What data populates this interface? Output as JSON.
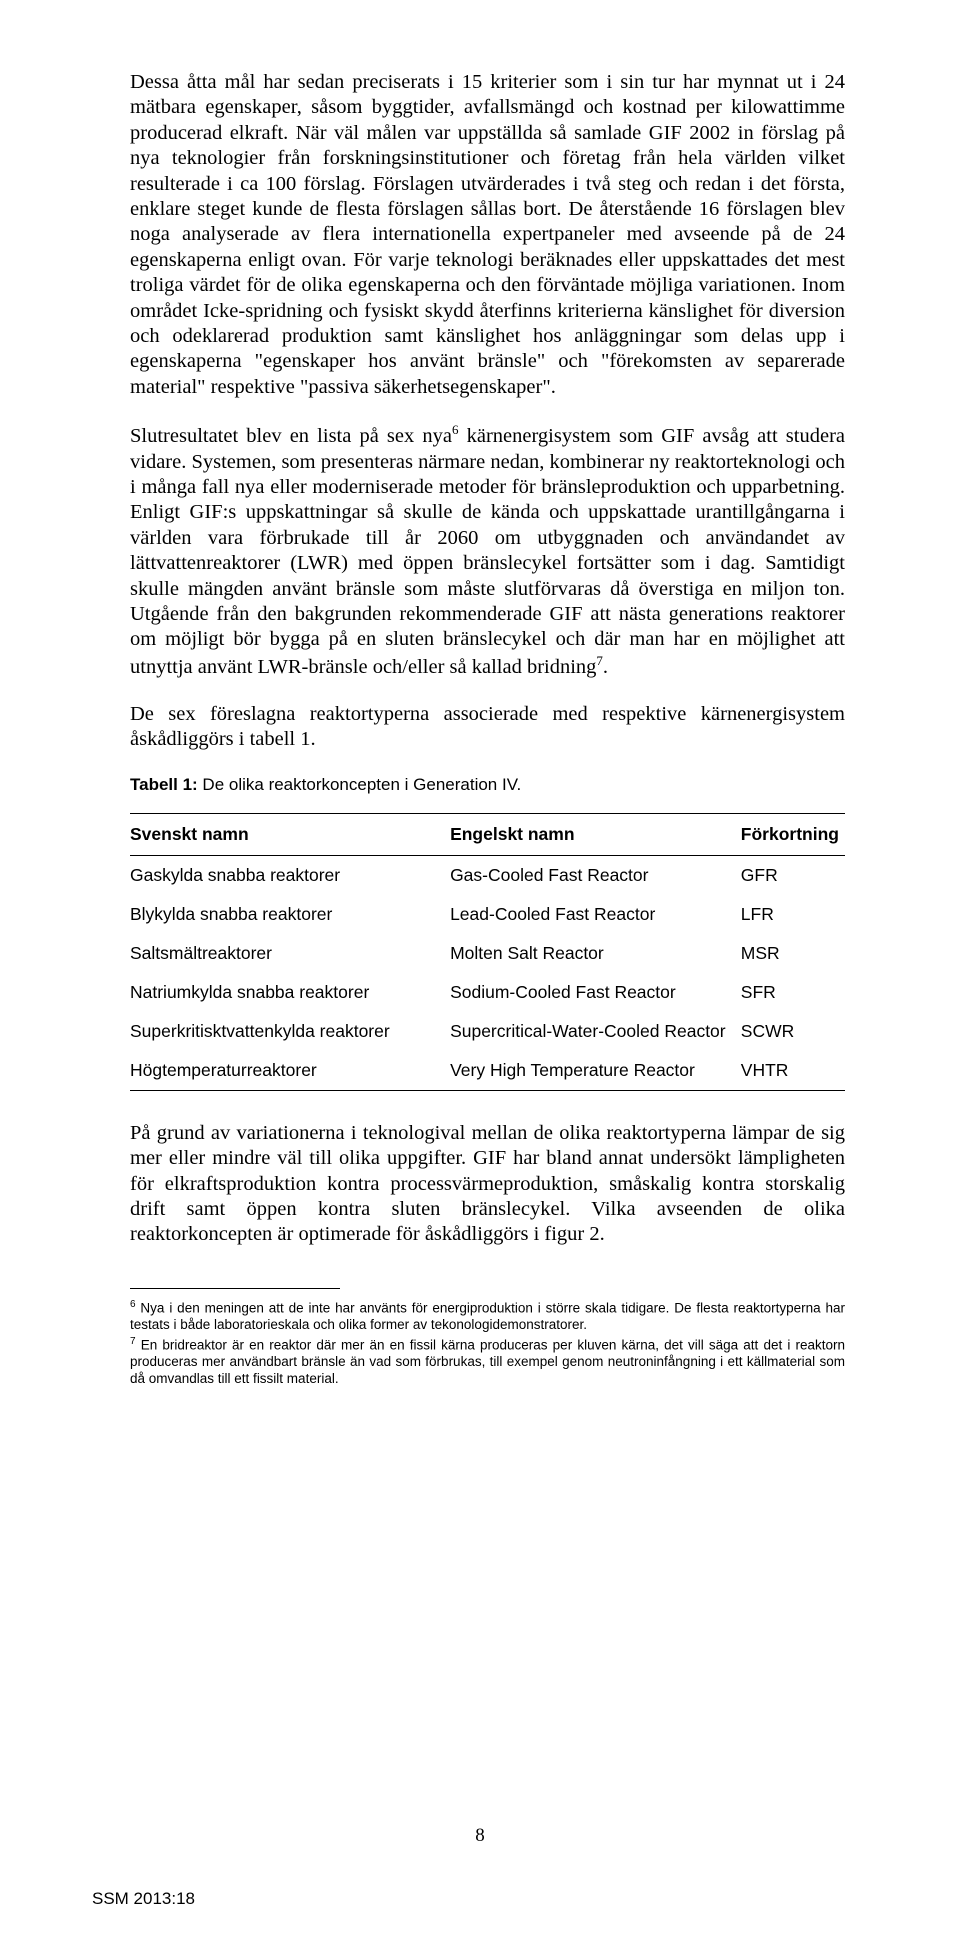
{
  "paragraphs": {
    "p1": "Dessa åtta mål har sedan preciserats i 15 kriterier som i sin tur har mynnat ut i 24 mätbara egenskaper, såsom byggtider, avfallsmängd och kostnad per kilowattimme producerad elkraft. När väl målen var uppställda så samlade GIF 2002 in förslag på nya teknologier från forskningsinstitutioner och företag från hela världen vilket resulterade i ca 100 förslag. Förslagen utvärderades i två steg och redan i det första, enklare steget kunde de flesta förslagen sållas bort. De återstående 16 förslagen blev noga analyserade av flera internationella expertpaneler med avseende på de 24 egenskaperna enligt ovan. För varje teknologi beräknades eller uppskattades det mest troliga värdet för de olika egenskaperna och den förväntade möjliga variationen. Inom området Icke-spridning och fysiskt skydd återfinns kriterierna känslighet för diversion och odeklarerad produktion samt känslighet hos anläggningar som delas upp i egenskaperna \"egenskaper hos använt bränsle\" och \"förekomsten av separerade material\" respektive \"passiva säkerhetsegenskaper\".",
    "p2_a": "Slutresultatet blev en lista på sex nya",
    "p2_sup": "6",
    "p2_b": " kärnenergisystem som GIF avsåg att studera vidare. Systemen, som presenteras närmare nedan, kombinerar ny reaktorteknologi och i många fall nya eller moderniserade metoder för bränsleproduktion och upparbetning. Enligt GIF:s uppskattningar så skulle de kända och uppskattade urantillgångarna i världen vara förbrukade till år 2060 om utbyggnaden och användandet av lättvattenreaktorer (LWR) med öppen bränslecykel fortsätter som i dag. Samtidigt skulle mängden använt bränsle som måste slutförvaras då överstiga en miljon ton. Utgående från den bakgrunden rekommenderade GIF att nästa generations reaktorer om möjligt bör bygga på en sluten bränslecykel och där man har en möjlighet att utnyttja använt LWR-bränsle och/eller så kallad bridning",
    "p2_sup2": "7",
    "p2_c": ".",
    "p3": "De sex föreslagna reaktortyperna associerade med respektive kärnenergisystem åskådliggörs i tabell 1.",
    "p4": "På grund av variationerna i teknologival mellan de olika reaktortyperna lämpar de sig mer eller mindre väl till olika uppgifter. GIF har bland annat undersökt lämpligheten för elkraftsproduktion kontra processvärmeproduktion, småskalig kontra storskalig drift samt öppen kontra sluten bränslecykel. Vilka avseenden de olika reaktorkoncepten är optimerade för åskådliggörs i figur 2."
  },
  "table": {
    "caption_bold": "Tabell 1:",
    "caption_rest": " De olika reaktorkoncepten i Generation IV.",
    "headers": {
      "sv": "Svenskt namn",
      "en": "Engelskt namn",
      "ab": "Förkortning"
    },
    "rows": [
      {
        "sv": "Gaskylda snabba reaktorer",
        "en": "Gas-Cooled Fast Reactor",
        "ab": "GFR"
      },
      {
        "sv": "Blykylda snabba reaktorer",
        "en": "Lead-Cooled Fast Reactor",
        "ab": "LFR"
      },
      {
        "sv": "Saltsmältreaktorer",
        "en": "Molten Salt Reactor",
        "ab": "MSR"
      },
      {
        "sv": "Natriumkylda snabba reaktorer",
        "en": "Sodium-Cooled Fast Reactor",
        "ab": "SFR"
      },
      {
        "sv": "Superkritisktvattenkylda reaktorer",
        "en": "Supercritical-Water-Cooled Reactor",
        "ab": "SCWR"
      },
      {
        "sv": "Högtemperaturreaktorer",
        "en": "Very High Temperature Reactor",
        "ab": "VHTR"
      }
    ]
  },
  "footnotes": {
    "f6_num": "6",
    "f6": " Nya i den meningen att de inte har använts för energiproduktion i större skala tidigare. De flesta reaktortyperna har testats i både laboratorieskala och olika former av tekonologidemonstratorer.",
    "f7_num": "7",
    "f7": " En bridreaktor är en reaktor där mer än en fissil kärna produceras per kluven kärna, det vill säga att det i reaktorn produceras mer användbart bränsle än vad som förbrukas, till exempel genom neutroninfångning i ett källmaterial som då omvandlas till ett fissilt material."
  },
  "page_number": "8",
  "doc_id": "SSM 2013:18"
}
